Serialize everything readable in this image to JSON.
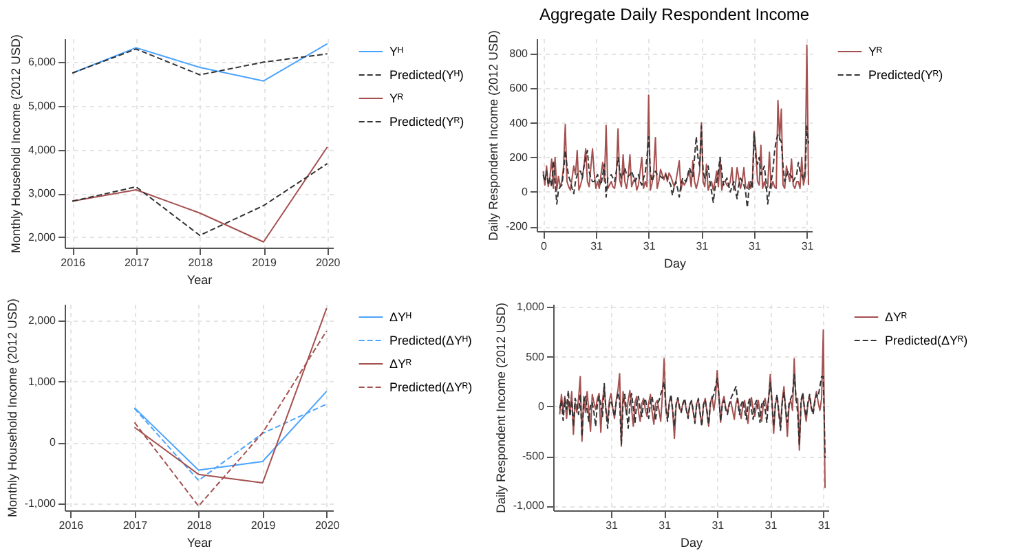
{
  "chart_data": [
    {
      "type": "line",
      "x": [
        2016,
        2017,
        2018,
        2019,
        2020
      ],
      "xlabel": "Year",
      "ylabel": "Monthly Household Income (2012 USD)",
      "xlim": [
        2015.88,
        2020.09
      ],
      "xticks": [
        2016,
        2017,
        2018,
        2019,
        2020
      ],
      "ylim": [
        1760,
        6540
      ],
      "yticks": [
        {
          "value": 2000,
          "label": "2,000"
        },
        {
          "value": 3000,
          "label": "3,000"
        },
        {
          "value": 4000,
          "label": "4,000"
        },
        {
          "value": 5000,
          "label": "5,000"
        },
        {
          "value": 6000,
          "label": "6,000"
        }
      ],
      "grid": true,
      "legend": "right",
      "series": [
        {
          "name": "Yᴴ",
          "color": "#4aa3ff",
          "line_style": "solid",
          "values": [
            5750,
            6330,
            5880,
            5570,
            6420
          ]
        },
        {
          "name": "Predicted(Yᴴ)",
          "color": "#333333",
          "line_style": "dashed",
          "values": [
            5750,
            6300,
            5710,
            6000,
            6190
          ]
        },
        {
          "name": "Yᴿ",
          "color": "#a4504f",
          "line_style": "solid",
          "values": [
            2820,
            3080,
            2550,
            1890,
            4060
          ]
        },
        {
          "name": "Predicted(Yᴿ)",
          "color": "#333333",
          "line_style": "dashed",
          "values": [
            2820,
            3150,
            2040,
            2720,
            3680
          ]
        }
      ]
    },
    {
      "type": "line",
      "title": "Aggregate Daily Respondent Income",
      "xlabel": "Day",
      "ylabel": "Daily Respondent Income (2012 USD)",
      "ylim": [
        -227,
        888
      ],
      "yticks": [
        -200,
        0,
        200,
        400,
        600,
        800
      ],
      "grid": true,
      "legend": "right",
      "categories": [
        "0",
        null,
        null,
        null,
        null,
        null,
        null,
        null,
        null,
        null,
        null,
        null,
        null,
        null,
        null,
        null,
        null,
        null,
        null,
        null,
        null,
        null,
        null,
        null,
        null,
        null,
        null,
        null,
        null,
        null,
        null,
        "31",
        null,
        null,
        null,
        null,
        null,
        null,
        null,
        null,
        null,
        null,
        null,
        null,
        null,
        null,
        null,
        null,
        null,
        null,
        null,
        null,
        null,
        null,
        null,
        null,
        null,
        null,
        null,
        null,
        null,
        null,
        "31",
        null,
        null,
        null,
        null,
        null,
        null,
        null,
        null,
        null,
        null,
        null,
        null,
        null,
        null,
        null,
        null,
        null,
        null,
        null,
        null,
        null,
        null,
        null,
        null,
        null,
        null,
        null,
        null,
        null,
        null,
        "31",
        null,
        null,
        null,
        null,
        null,
        null,
        null,
        null,
        null,
        null,
        null,
        null,
        null,
        null,
        null,
        null,
        null,
        null,
        null,
        null,
        null,
        null,
        null,
        null,
        null,
        null,
        null,
        null,
        null,
        null,
        "31",
        null,
        null,
        null,
        null,
        null,
        null,
        null,
        null,
        null,
        null,
        null,
        null,
        null,
        null,
        null,
        null,
        null,
        null,
        null,
        null,
        null,
        null,
        null,
        null,
        null,
        null,
        null,
        null,
        null,
        null,
        "31",
        null
      ],
      "series": [
        {
          "name": "Yᴿ",
          "color": "#a4504f",
          "line_style": "solid",
          "values": [
            120,
            40,
            150,
            30,
            90,
            190,
            20,
            200,
            10,
            90,
            30,
            60,
            150,
            390,
            60,
            30,
            10,
            80,
            150,
            100,
            240,
            10,
            40,
            80,
            150,
            250,
            60,
            30,
            140,
            250,
            110,
            20,
            60,
            20,
            100,
            170,
            60,
            385,
            20,
            40,
            60,
            30,
            20,
            90,
            365,
            70,
            30,
            215,
            60,
            20,
            90,
            215,
            30,
            60,
            80,
            10,
            40,
            120,
            200,
            20,
            60,
            30,
            560,
            10,
            50,
            120,
            315,
            20,
            60,
            130,
            100,
            70,
            110,
            60,
            110,
            90,
            60,
            30,
            60,
            120,
            180,
            10,
            60,
            40,
            60,
            90,
            120,
            30,
            180,
            60,
            20,
            60,
            120,
            400,
            60,
            30,
            160,
            10,
            40,
            60,
            10,
            60,
            120,
            30,
            200,
            10,
            60,
            60,
            40,
            30,
            60,
            140,
            10,
            40,
            140,
            80,
            20,
            60,
            140,
            30,
            20,
            60,
            20,
            60,
            350,
            250,
            60,
            40,
            270,
            20,
            60,
            20,
            30,
            230,
            20,
            60,
            30,
            20,
            530,
            300,
            480,
            40,
            20,
            150,
            100,
            60,
            190,
            40,
            20,
            60,
            60,
            20,
            200,
            40,
            90,
            850,
            40
          ]
        },
        {
          "name": "Predicted(Yᴿ)",
          "color": "#333333",
          "line_style": "dashed",
          "values": [
            100,
            60,
            120,
            40,
            80,
            30,
            180,
            60,
            -70,
            10,
            30,
            40,
            120,
            240,
            150,
            90,
            60,
            20,
            -10,
            60,
            100,
            120,
            120,
            80,
            150,
            200,
            240,
            120,
            80,
            60,
            60,
            80,
            100,
            60,
            40,
            100,
            160,
            -30,
            80,
            90,
            100,
            80,
            60,
            120,
            200,
            120,
            80,
            100,
            140,
            100,
            90,
            100,
            120,
            90,
            60,
            80,
            100,
            60,
            40,
            80,
            110,
            200,
            320,
            120,
            60,
            90,
            120,
            100,
            100,
            90,
            80,
            90,
            100,
            80,
            60,
            40,
            -20,
            30,
            60,
            20,
            -30,
            40,
            80,
            70,
            60,
            100,
            140,
            110,
            90,
            200,
            320,
            200,
            150,
            380,
            120,
            80,
            100,
            150,
            60,
            0,
            -60,
            20,
            60,
            120,
            200,
            120,
            40,
            60,
            80,
            40,
            0,
            30,
            60,
            10,
            -40,
            40,
            80,
            60,
            40,
            0,
            -90,
            20,
            60,
            20,
            340,
            200,
            160,
            200,
            100,
            120,
            150,
            60,
            -70,
            0,
            60,
            120,
            230,
            300,
            330,
            310,
            290,
            150,
            60,
            90,
            120,
            100,
            90,
            60,
            80,
            100,
            170,
            120,
            100,
            70,
            120,
            380,
            280
          ]
        }
      ]
    },
    {
      "type": "line",
      "x": [
        2017,
        2018,
        2019,
        2020
      ],
      "xlabel": "Year",
      "ylabel": "Monthly Household Income (2012 USD)",
      "xlim": [
        2015.91,
        2020.1
      ],
      "xticks": [
        2016,
        2017,
        2018,
        2019,
        2020
      ],
      "ylim": [
        -1110,
        2270
      ],
      "yticks": [
        {
          "value": -1000,
          "label": "-1,000"
        },
        0,
        {
          "value": 1000,
          "label": "1,000"
        },
        {
          "value": 2000,
          "label": "2,000"
        }
      ],
      "grid": true,
      "legend": "right",
      "series": [
        {
          "name": "ΔYᴴ",
          "color": "#4aa3ff",
          "line_style": "solid",
          "values": [
            570,
            -450,
            -310,
            840
          ]
        },
        {
          "name": "Predicted(ΔYᴴ)",
          "color": "#4aa3ff",
          "line_style": "dashed",
          "values": [
            560,
            -620,
            150,
            630
          ]
        },
        {
          "name": "ΔYᴿ",
          "color": "#a4504f",
          "line_style": "solid",
          "values": [
            250,
            -520,
            -660,
            2200
          ]
        },
        {
          "name": "Predicted(ΔYᴿ)",
          "color": "#a4504f",
          "line_style": "dashed",
          "values": [
            330,
            -1040,
            160,
            1830
          ]
        }
      ]
    },
    {
      "type": "line",
      "xlabel": "Day",
      "ylabel": "Daily Respondent Income (2012 USD)",
      "ylim": [
        -1045,
        1030
      ],
      "yticks": [
        {
          "value": -1000,
          "label": "-1,000"
        },
        -500,
        0,
        500,
        {
          "value": 1000,
          "label": "1,000"
        }
      ],
      "grid": true,
      "legend": "right",
      "categories": [
        null,
        null,
        null,
        null,
        null,
        null,
        null,
        null,
        null,
        null,
        null,
        null,
        null,
        null,
        null,
        null,
        null,
        null,
        null,
        null,
        null,
        null,
        null,
        null,
        null,
        null,
        null,
        null,
        null,
        null,
        "31",
        null,
        null,
        null,
        null,
        null,
        null,
        null,
        null,
        null,
        null,
        null,
        null,
        null,
        null,
        null,
        null,
        null,
        null,
        null,
        null,
        null,
        null,
        null,
        null,
        null,
        null,
        null,
        null,
        null,
        null,
        "31",
        null,
        null,
        null,
        null,
        null,
        null,
        null,
        null,
        null,
        null,
        null,
        null,
        null,
        null,
        null,
        null,
        null,
        null,
        null,
        null,
        null,
        null,
        null,
        null,
        null,
        null,
        null,
        null,
        null,
        null,
        "31",
        null,
        null,
        null,
        null,
        null,
        null,
        null,
        null,
        null,
        null,
        null,
        null,
        null,
        null,
        null,
        null,
        null,
        null,
        null,
        null,
        null,
        null,
        null,
        null,
        null,
        null,
        null,
        null,
        null,
        null,
        "31",
        null,
        null,
        null,
        null,
        null,
        null,
        null,
        null,
        null,
        null,
        null,
        null,
        null,
        null,
        null,
        null,
        null,
        null,
        null,
        null,
        null,
        null,
        null,
        null,
        null,
        null,
        null,
        null,
        null,
        null,
        "31",
        null
      ],
      "series": [
        {
          "name": "ΔYᴿ",
          "color": "#a4504f",
          "line_style": "solid",
          "values": [
            -80,
            120,
            -50,
            100,
            -120,
            60,
            -60,
            150,
            -280,
            40,
            -60,
            80,
            300,
            -350,
            100,
            -60,
            150,
            -50,
            -250,
            120,
            40,
            -30,
            80,
            130,
            -260,
            60,
            200,
            -40,
            -150,
            60,
            130,
            -20,
            -120,
            60,
            160,
            330,
            -400,
            150,
            30,
            -80,
            60,
            160,
            -30,
            -200,
            40,
            100,
            -50,
            -150,
            30,
            80,
            -30,
            -100,
            40,
            120,
            -60,
            -180,
            30,
            60,
            -40,
            -150,
            120,
            480,
            -10,
            -120,
            40,
            100,
            -50,
            -320,
            20,
            80,
            -20,
            -50,
            30,
            60,
            -40,
            -100,
            20,
            50,
            -60,
            -150,
            30,
            60,
            -70,
            -180,
            20,
            80,
            -60,
            -200,
            30,
            100,
            -40,
            80,
            360,
            120,
            -160,
            40,
            100,
            -20,
            -60,
            20,
            50,
            -40,
            -130,
            30,
            80,
            -40,
            -120,
            20,
            60,
            -60,
            -170,
            30,
            90,
            -30,
            -100,
            20,
            60,
            -50,
            -150,
            30,
            80,
            -40,
            60,
            320,
            60,
            -270,
            20,
            90,
            -60,
            -200,
            60,
            200,
            -40,
            -300,
            20,
            60,
            -40,
            480,
            60,
            80,
            -440,
            40,
            120,
            -30,
            -150,
            30,
            100,
            -20,
            -60,
            60,
            150,
            40,
            -40,
            80,
            770,
            -820
          ]
        },
        {
          "name": "Predicted(ΔYᴿ)",
          "color": "#333333",
          "line_style": "dashed",
          "values": [
            -20,
            60,
            -140,
            80,
            -30,
            160,
            -100,
            60,
            -200,
            80,
            20,
            -80,
            120,
            -300,
            40,
            100,
            -40,
            -150,
            20,
            40,
            -60,
            -200,
            30,
            100,
            20,
            -100,
            230,
            -40,
            -220,
            20,
            60,
            -20,
            -100,
            40,
            140,
            60,
            -380,
            40,
            120,
            -40,
            -220,
            30,
            130,
            -20,
            -160,
            40,
            100,
            -30,
            -100,
            30,
            80,
            -20,
            -120,
            40,
            100,
            -40,
            -140,
            20,
            60,
            120,
            180,
            250,
            -20,
            -150,
            30,
            120,
            -40,
            -200,
            20,
            90,
            -10,
            -60,
            30,
            80,
            -30,
            -120,
            20,
            60,
            -40,
            -170,
            20,
            80,
            -60,
            -200,
            20,
            60,
            -40,
            -180,
            30,
            80,
            120,
            200,
            280,
            100,
            -150,
            20,
            60,
            -30,
            -80,
            20,
            80,
            120,
            160,
            200,
            40,
            -80,
            20,
            60,
            -40,
            -130,
            20,
            80,
            -30,
            -130,
            20,
            60,
            -40,
            -160,
            20,
            60,
            -30,
            -160,
            80,
            240,
            40,
            -200,
            30,
            120,
            -60,
            -240,
            40,
            140,
            -30,
            -160,
            30,
            80,
            120,
            320,
            100,
            -60,
            -380,
            60,
            140,
            -20,
            -100,
            40,
            120,
            -10,
            -80,
            40,
            120,
            100,
            200,
            300,
            300,
            -520
          ]
        }
      ]
    }
  ]
}
